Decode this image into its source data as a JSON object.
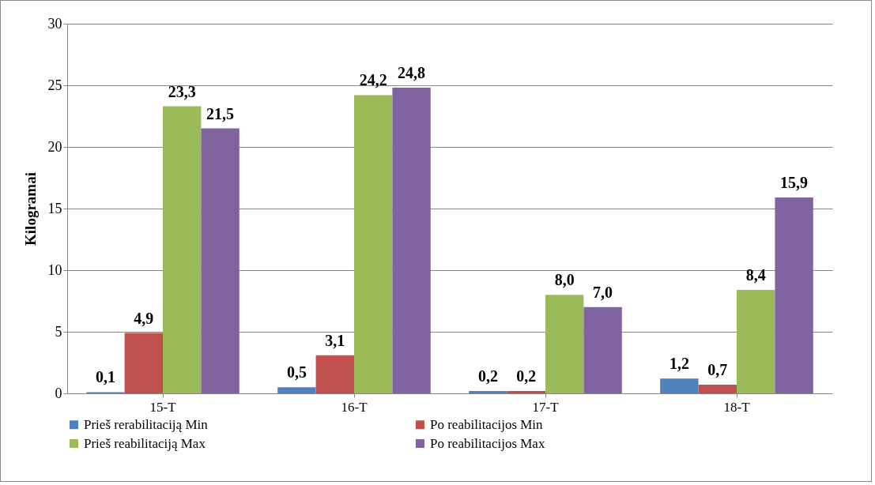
{
  "chart_data": {
    "type": "bar",
    "ylabel": "Kilogramai",
    "categories": [
      "15-T",
      "16-T",
      "17-T",
      "18-T"
    ],
    "series": [
      {
        "name": "Prieš rerabilitaciją Min",
        "color": "#4f81bd",
        "values": [
          0.1,
          0.5,
          0.2,
          1.2
        ],
        "value_labels": [
          "0,1",
          "0,5",
          "0,2",
          "1,2"
        ]
      },
      {
        "name": "Po reabilitacijos Min",
        "color": "#c0504d",
        "values": [
          4.9,
          3.1,
          0.2,
          0.7
        ],
        "value_labels": [
          "4,9",
          "3,1",
          "0,2",
          "0,7"
        ]
      },
      {
        "name": "Prieš reabilitaciją Max",
        "color": "#9bbb59",
        "values": [
          23.3,
          24.2,
          8.0,
          8.4
        ],
        "value_labels": [
          "23,3",
          "24,2",
          "8,0",
          "8,4"
        ]
      },
      {
        "name": "Po reabilitacijos Max",
        "color": "#8064a2",
        "values": [
          21.5,
          24.8,
          7.0,
          15.9
        ],
        "value_labels": [
          "21,5",
          "24,8",
          "7,0",
          "15,9"
        ]
      }
    ],
    "ylim": [
      0,
      30
    ],
    "yticks": [
      0,
      5,
      10,
      15,
      20,
      25,
      30
    ],
    "grid": "y",
    "legend": "bottom"
  }
}
